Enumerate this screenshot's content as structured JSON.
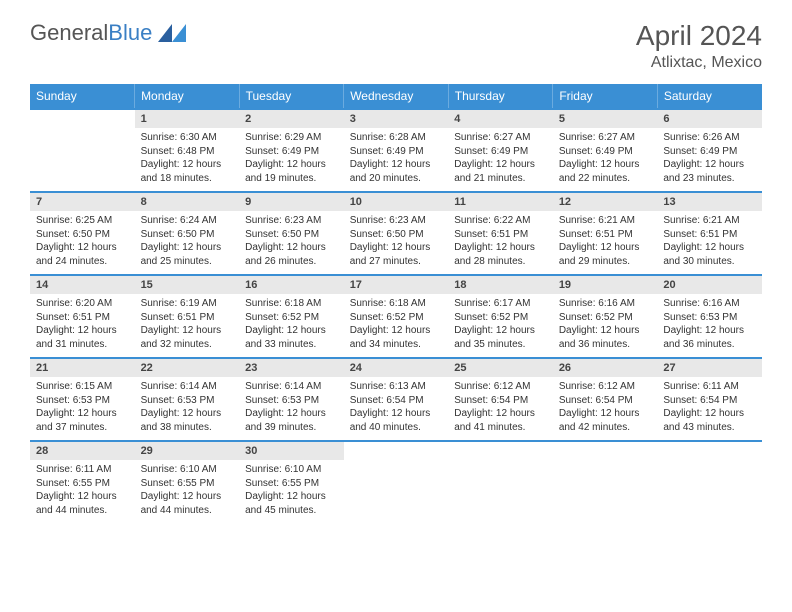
{
  "logo": {
    "text1": "General",
    "text2": "Blue"
  },
  "title": "April 2024",
  "location": "Atlixtac, Mexico",
  "colors": {
    "header_bg": "#3a8fd4",
    "daynum_bg": "#e8e8e8",
    "rule": "#3a8fd4",
    "text": "#333333",
    "title": "#555555"
  },
  "weekdays": [
    "Sunday",
    "Monday",
    "Tuesday",
    "Wednesday",
    "Thursday",
    "Friday",
    "Saturday"
  ],
  "weeks": [
    [
      null,
      {
        "n": "1",
        "sr": "6:30 AM",
        "ss": "6:48 PM",
        "dl": "12 hours and 18 minutes."
      },
      {
        "n": "2",
        "sr": "6:29 AM",
        "ss": "6:49 PM",
        "dl": "12 hours and 19 minutes."
      },
      {
        "n": "3",
        "sr": "6:28 AM",
        "ss": "6:49 PM",
        "dl": "12 hours and 20 minutes."
      },
      {
        "n": "4",
        "sr": "6:27 AM",
        "ss": "6:49 PM",
        "dl": "12 hours and 21 minutes."
      },
      {
        "n": "5",
        "sr": "6:27 AM",
        "ss": "6:49 PM",
        "dl": "12 hours and 22 minutes."
      },
      {
        "n": "6",
        "sr": "6:26 AM",
        "ss": "6:49 PM",
        "dl": "12 hours and 23 minutes."
      }
    ],
    [
      {
        "n": "7",
        "sr": "6:25 AM",
        "ss": "6:50 PM",
        "dl": "12 hours and 24 minutes."
      },
      {
        "n": "8",
        "sr": "6:24 AM",
        "ss": "6:50 PM",
        "dl": "12 hours and 25 minutes."
      },
      {
        "n": "9",
        "sr": "6:23 AM",
        "ss": "6:50 PM",
        "dl": "12 hours and 26 minutes."
      },
      {
        "n": "10",
        "sr": "6:23 AM",
        "ss": "6:50 PM",
        "dl": "12 hours and 27 minutes."
      },
      {
        "n": "11",
        "sr": "6:22 AM",
        "ss": "6:51 PM",
        "dl": "12 hours and 28 minutes."
      },
      {
        "n": "12",
        "sr": "6:21 AM",
        "ss": "6:51 PM",
        "dl": "12 hours and 29 minutes."
      },
      {
        "n": "13",
        "sr": "6:21 AM",
        "ss": "6:51 PM",
        "dl": "12 hours and 30 minutes."
      }
    ],
    [
      {
        "n": "14",
        "sr": "6:20 AM",
        "ss": "6:51 PM",
        "dl": "12 hours and 31 minutes."
      },
      {
        "n": "15",
        "sr": "6:19 AM",
        "ss": "6:51 PM",
        "dl": "12 hours and 32 minutes."
      },
      {
        "n": "16",
        "sr": "6:18 AM",
        "ss": "6:52 PM",
        "dl": "12 hours and 33 minutes."
      },
      {
        "n": "17",
        "sr": "6:18 AM",
        "ss": "6:52 PM",
        "dl": "12 hours and 34 minutes."
      },
      {
        "n": "18",
        "sr": "6:17 AM",
        "ss": "6:52 PM",
        "dl": "12 hours and 35 minutes."
      },
      {
        "n": "19",
        "sr": "6:16 AM",
        "ss": "6:52 PM",
        "dl": "12 hours and 36 minutes."
      },
      {
        "n": "20",
        "sr": "6:16 AM",
        "ss": "6:53 PM",
        "dl": "12 hours and 36 minutes."
      }
    ],
    [
      {
        "n": "21",
        "sr": "6:15 AM",
        "ss": "6:53 PM",
        "dl": "12 hours and 37 minutes."
      },
      {
        "n": "22",
        "sr": "6:14 AM",
        "ss": "6:53 PM",
        "dl": "12 hours and 38 minutes."
      },
      {
        "n": "23",
        "sr": "6:14 AM",
        "ss": "6:53 PM",
        "dl": "12 hours and 39 minutes."
      },
      {
        "n": "24",
        "sr": "6:13 AM",
        "ss": "6:54 PM",
        "dl": "12 hours and 40 minutes."
      },
      {
        "n": "25",
        "sr": "6:12 AM",
        "ss": "6:54 PM",
        "dl": "12 hours and 41 minutes."
      },
      {
        "n": "26",
        "sr": "6:12 AM",
        "ss": "6:54 PM",
        "dl": "12 hours and 42 minutes."
      },
      {
        "n": "27",
        "sr": "6:11 AM",
        "ss": "6:54 PM",
        "dl": "12 hours and 43 minutes."
      }
    ],
    [
      {
        "n": "28",
        "sr": "6:11 AM",
        "ss": "6:55 PM",
        "dl": "12 hours and 44 minutes."
      },
      {
        "n": "29",
        "sr": "6:10 AM",
        "ss": "6:55 PM",
        "dl": "12 hours and 44 minutes."
      },
      {
        "n": "30",
        "sr": "6:10 AM",
        "ss": "6:55 PM",
        "dl": "12 hours and 45 minutes."
      },
      null,
      null,
      null,
      null
    ]
  ],
  "labels": {
    "sunrise": "Sunrise:",
    "sunset": "Sunset:",
    "daylight": "Daylight:"
  }
}
